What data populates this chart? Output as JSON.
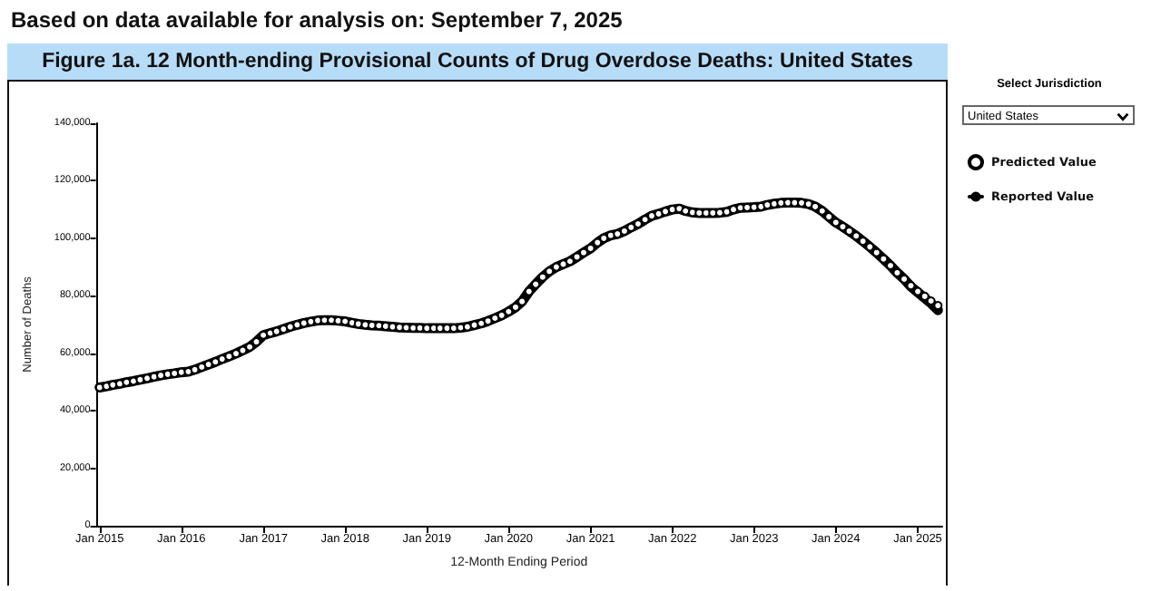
{
  "chart_data": {
    "type": "scatter",
    "title": "Figure 1a. 12 Month-ending Provisional Counts of Drug Overdose Deaths: United States",
    "subtitle": "Based on data available for analysis on: September 7, 2025",
    "xlabel": "12-Month Ending Period",
    "ylabel": "Number of Deaths",
    "annotations": [
      "Select Jurisdiction",
      "United States"
    ],
    "x": [
      "2015-01",
      "2015-02",
      "2015-03",
      "2015-04",
      "2015-05",
      "2015-06",
      "2015-07",
      "2015-08",
      "2015-09",
      "2015-10",
      "2015-11",
      "2015-12",
      "2016-01",
      "2016-02",
      "2016-03",
      "2016-04",
      "2016-05",
      "2016-06",
      "2016-07",
      "2016-08",
      "2016-09",
      "2016-10",
      "2016-11",
      "2016-12",
      "2017-01",
      "2017-02",
      "2017-03",
      "2017-04",
      "2017-05",
      "2017-06",
      "2017-07",
      "2017-08",
      "2017-09",
      "2017-10",
      "2017-11",
      "2017-12",
      "2018-01",
      "2018-02",
      "2018-03",
      "2018-04",
      "2018-05",
      "2018-06",
      "2018-07",
      "2018-08",
      "2018-09",
      "2018-10",
      "2018-11",
      "2018-12",
      "2019-01",
      "2019-02",
      "2019-03",
      "2019-04",
      "2019-05",
      "2019-06",
      "2019-07",
      "2019-08",
      "2019-09",
      "2019-10",
      "2019-11",
      "2019-12",
      "2020-01",
      "2020-02",
      "2020-03",
      "2020-04",
      "2020-05",
      "2020-06",
      "2020-07",
      "2020-08",
      "2020-09",
      "2020-10",
      "2020-11",
      "2020-12",
      "2021-01",
      "2021-02",
      "2021-03",
      "2021-04",
      "2021-05",
      "2021-06",
      "2021-07",
      "2021-08",
      "2021-09",
      "2021-10",
      "2021-11",
      "2021-12",
      "2022-01",
      "2022-02",
      "2022-03",
      "2022-04",
      "2022-05",
      "2022-06",
      "2022-07",
      "2022-08",
      "2022-09",
      "2022-10",
      "2022-11",
      "2022-12",
      "2023-01",
      "2023-02",
      "2023-03",
      "2023-04",
      "2023-05",
      "2023-06",
      "2023-07",
      "2023-08",
      "2023-09",
      "2023-10",
      "2023-11",
      "2023-12",
      "2024-01",
      "2024-02",
      "2024-03",
      "2024-04",
      "2024-05",
      "2024-06",
      "2024-07",
      "2024-08",
      "2024-09",
      "2024-10",
      "2024-11",
      "2024-12",
      "2025-01",
      "2025-02",
      "2025-03",
      "2025-04"
    ],
    "series": [
      {
        "name": "Reported Value",
        "type": "line",
        "color": "#000000",
        "values": [
          48100,
          48500,
          49000,
          49400,
          49900,
          50300,
          50800,
          51300,
          51800,
          52300,
          52700,
          53000,
          53400,
          53600,
          54300,
          55200,
          56100,
          57000,
          58000,
          58900,
          59900,
          61000,
          62200,
          64000,
          66300,
          67000,
          67600,
          68400,
          69200,
          69900,
          70500,
          71000,
          71400,
          71500,
          71500,
          71300,
          71100,
          70600,
          70200,
          69900,
          69700,
          69600,
          69400,
          69200,
          69000,
          68900,
          68800,
          68800,
          68700,
          68700,
          68700,
          68700,
          68700,
          68900,
          69200,
          69800,
          70400,
          71200,
          72200,
          73200,
          74500,
          76000,
          78000,
          81500,
          84000,
          86500,
          88500,
          90000,
          91000,
          92000,
          93500,
          95000,
          96500,
          98500,
          100000,
          101000,
          101500,
          102500,
          103800,
          105000,
          106500,
          107800,
          108500,
          109300,
          110000,
          110300,
          109500,
          109000,
          108800,
          108800,
          108800,
          108900,
          109200,
          110000,
          110600,
          110700,
          110800,
          111000,
          111600,
          112000,
          112300,
          112400,
          112400,
          112300,
          111900,
          111000,
          109500,
          107500,
          105500,
          104000,
          102500,
          100800,
          99000,
          97000,
          95000,
          92800,
          90500,
          88000,
          85800,
          83200,
          81200,
          79200,
          77400,
          75000
        ]
      },
      {
        "name": "Predicted Value",
        "marker": "circle",
        "color": "#000000",
        "values": [
          48100,
          48500,
          49000,
          49400,
          49900,
          50300,
          50800,
          51300,
          51800,
          52300,
          52700,
          53000,
          53400,
          53600,
          54300,
          55200,
          56100,
          57000,
          58000,
          58900,
          59900,
          61000,
          62200,
          64000,
          66300,
          67000,
          67600,
          68400,
          69200,
          69900,
          70500,
          71000,
          71400,
          71500,
          71500,
          71300,
          71100,
          70600,
          70200,
          69900,
          69700,
          69600,
          69400,
          69200,
          69000,
          68900,
          68800,
          68800,
          68700,
          68700,
          68700,
          68700,
          68700,
          68900,
          69200,
          69800,
          70400,
          71200,
          72200,
          73200,
          74500,
          76000,
          78000,
          81500,
          84000,
          86500,
          88500,
          90000,
          91000,
          92000,
          93500,
          95000,
          96500,
          98500,
          100000,
          101000,
          101500,
          102500,
          103800,
          105000,
          106500,
          107800,
          108500,
          109300,
          110000,
          110300,
          109500,
          109000,
          108800,
          108800,
          108800,
          108900,
          109200,
          110000,
          110600,
          110700,
          110800,
          111000,
          111600,
          112000,
          112300,
          112400,
          112400,
          112300,
          111900,
          111000,
          109500,
          107500,
          105500,
          104000,
          102500,
          100800,
          99000,
          97000,
          95000,
          92800,
          90500,
          88000,
          85800,
          83500,
          81500,
          79800,
          78200,
          76600
        ]
      }
    ],
    "xlim": [
      "2014-12-15",
      "2025-04-20"
    ],
    "xticks": [
      {
        "value": "2015-01",
        "label": "Jan 2015"
      },
      {
        "value": "2016-01",
        "label": "Jan 2016"
      },
      {
        "value": "2017-01",
        "label": "Jan 2017"
      },
      {
        "value": "2018-01",
        "label": "Jan 2018"
      },
      {
        "value": "2019-01",
        "label": "Jan 2019"
      },
      {
        "value": "2020-01",
        "label": "Jan 2020"
      },
      {
        "value": "2021-01",
        "label": "Jan 2021"
      },
      {
        "value": "2022-01",
        "label": "Jan 2022"
      },
      {
        "value": "2023-01",
        "label": "Jan 2023"
      },
      {
        "value": "2024-01",
        "label": "Jan 2024"
      },
      {
        "value": "2025-01",
        "label": "Jan 2025"
      }
    ],
    "ylim": [
      0,
      140000
    ],
    "yticks": [
      {
        "value": 0,
        "label": "0"
      },
      {
        "value": 20000,
        "label": "20,000"
      },
      {
        "value": 40000,
        "label": "40,000"
      },
      {
        "value": 60000,
        "label": "60,000"
      },
      {
        "value": 80000,
        "label": "80,000"
      },
      {
        "value": 100000,
        "label": "100,000"
      },
      {
        "value": 120000,
        "label": "120,000"
      },
      {
        "value": 140000,
        "label": "140,000"
      }
    ],
    "grid": false,
    "legend": "right"
  }
}
